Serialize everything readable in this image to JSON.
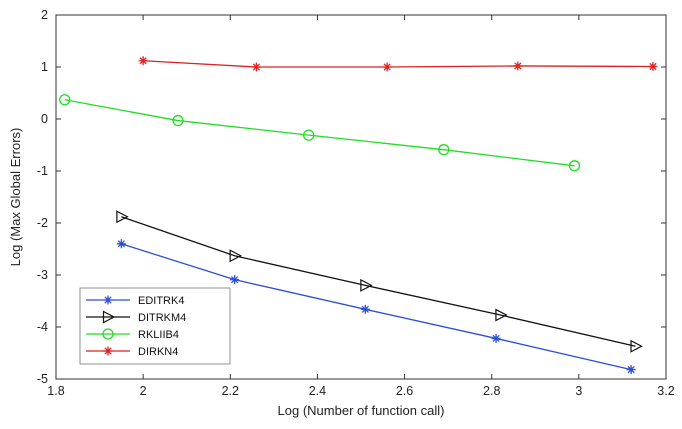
{
  "chart_data": {
    "type": "line",
    "xlabel": "Log (Number of function call)",
    "ylabel": "Log (Max Global Errors)",
    "xlim": [
      1.8,
      3.2
    ],
    "ylim": [
      -5,
      2
    ],
    "xticks": [
      1.8,
      2,
      2.2,
      2.4,
      2.6,
      2.8,
      3,
      3.2
    ],
    "xtick_labels": [
      "1.8",
      "2",
      "2.2",
      "2.4",
      "2.6",
      "2.8",
      "3",
      "3.2"
    ],
    "yticks": [
      -5,
      -4,
      -3,
      -2,
      -1,
      0,
      1,
      2
    ],
    "ytick_labels": [
      "-5",
      "-4",
      "-3",
      "-2",
      "-1",
      "0",
      "1",
      "2"
    ],
    "grid": false,
    "legend_position": "bottom-left",
    "series": [
      {
        "name": "EDITRK4",
        "color": "#2c4fd6",
        "marker": "asterisk",
        "x": [
          1.95,
          2.21,
          2.51,
          2.81,
          3.12
        ],
        "y": [
          -2.4,
          -3.09,
          -3.66,
          -4.22,
          -4.82
        ]
      },
      {
        "name": "DITRKM4",
        "color": "#111111",
        "marker": "triangle-right",
        "x": [
          1.95,
          2.21,
          2.51,
          2.82,
          3.13
        ],
        "y": [
          -1.88,
          -2.63,
          -3.2,
          -3.77,
          -4.37
        ]
      },
      {
        "name": "RKLIIB4",
        "color": "#22dd22",
        "marker": "circle",
        "x": [
          1.82,
          2.08,
          2.38,
          2.69,
          2.99
        ],
        "y": [
          0.37,
          -0.03,
          -0.31,
          -0.59,
          -0.9
        ]
      },
      {
        "name": "DIRKN4",
        "color": "#dd2222",
        "marker": "asterisk",
        "x": [
          2.0,
          2.26,
          2.56,
          2.86,
          3.17
        ],
        "y": [
          1.12,
          1.0,
          1.0,
          1.02,
          1.01
        ]
      }
    ]
  }
}
